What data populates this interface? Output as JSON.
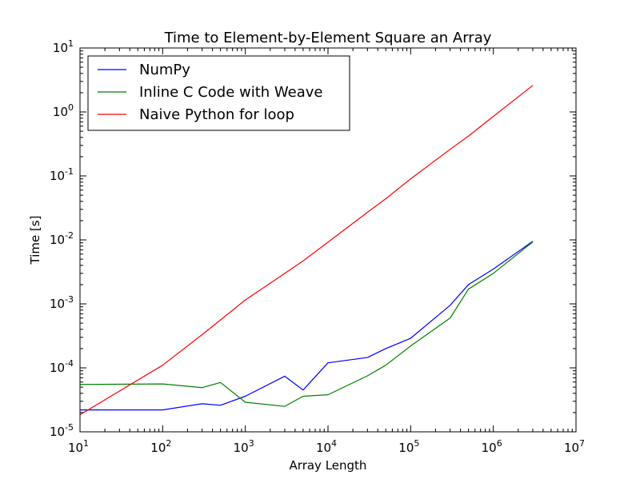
{
  "chart_data": {
    "type": "line",
    "title": "Time to Element-by-Element Square an Array",
    "xlabel": "Array Length",
    "ylabel": "Time [s]",
    "xscale": "log",
    "yscale": "log",
    "xlim": [
      10,
      10000000
    ],
    "ylim": [
      1e-05,
      10
    ],
    "xticks": [
      {
        "value": 10,
        "base": "10",
        "exp": "1"
      },
      {
        "value": 100,
        "base": "10",
        "exp": "2"
      },
      {
        "value": 1000,
        "base": "10",
        "exp": "3"
      },
      {
        "value": 10000,
        "base": "10",
        "exp": "4"
      },
      {
        "value": 100000,
        "base": "10",
        "exp": "5"
      },
      {
        "value": 1000000,
        "base": "10",
        "exp": "6"
      },
      {
        "value": 10000000,
        "base": "10",
        "exp": "7"
      }
    ],
    "yticks": [
      {
        "value": 1e-05,
        "base": "10",
        "exp": "-5"
      },
      {
        "value": 0.0001,
        "base": "10",
        "exp": "-4"
      },
      {
        "value": 0.001,
        "base": "10",
        "exp": "-3"
      },
      {
        "value": 0.01,
        "base": "10",
        "exp": "-2"
      },
      {
        "value": 0.1,
        "base": "10",
        "exp": "-1"
      },
      {
        "value": 1,
        "base": "10",
        "exp": "0"
      },
      {
        "value": 10,
        "base": "10",
        "exp": "1"
      }
    ],
    "grid": false,
    "legend_position": "top-left",
    "series": [
      {
        "name": "NumPy",
        "color": "#0000ff",
        "x": [
          10,
          100,
          300,
          500,
          1000,
          3000,
          5000,
          10000,
          30000,
          50000,
          100000,
          300000,
          500000,
          1000000,
          3000000
        ],
        "y": [
          2.2e-05,
          2.2e-05,
          2.75e-05,
          2.6e-05,
          3.6e-05,
          7.4e-05,
          4.5e-05,
          0.00012,
          0.000145,
          0.0002,
          0.00029,
          0.00095,
          0.002,
          0.0035,
          0.0095
        ]
      },
      {
        "name": "Inline C Code with Weave",
        "color": "#008000",
        "x": [
          10,
          100,
          300,
          500,
          1000,
          3000,
          5000,
          10000,
          30000,
          50000,
          100000,
          300000,
          500000,
          1000000,
          3000000
        ],
        "y": [
          5.5e-05,
          5.6e-05,
          4.9e-05,
          5.9e-05,
          2.9e-05,
          2.5e-05,
          3.6e-05,
          3.8e-05,
          7.5e-05,
          0.00011,
          0.00022,
          0.0006,
          0.0017,
          0.003,
          0.0093
        ]
      },
      {
        "name": "Naive Python for loop",
        "color": "#ff0000",
        "x": [
          10,
          100,
          300,
          500,
          1000,
          3000,
          5000,
          10000,
          30000,
          50000,
          100000,
          300000,
          500000,
          1000000,
          3000000
        ],
        "y": [
          1.85e-05,
          0.00011,
          0.00033,
          0.00056,
          0.00115,
          0.003,
          0.0047,
          0.0092,
          0.027,
          0.044,
          0.09,
          0.26,
          0.42,
          0.85,
          2.6
        ]
      }
    ]
  }
}
